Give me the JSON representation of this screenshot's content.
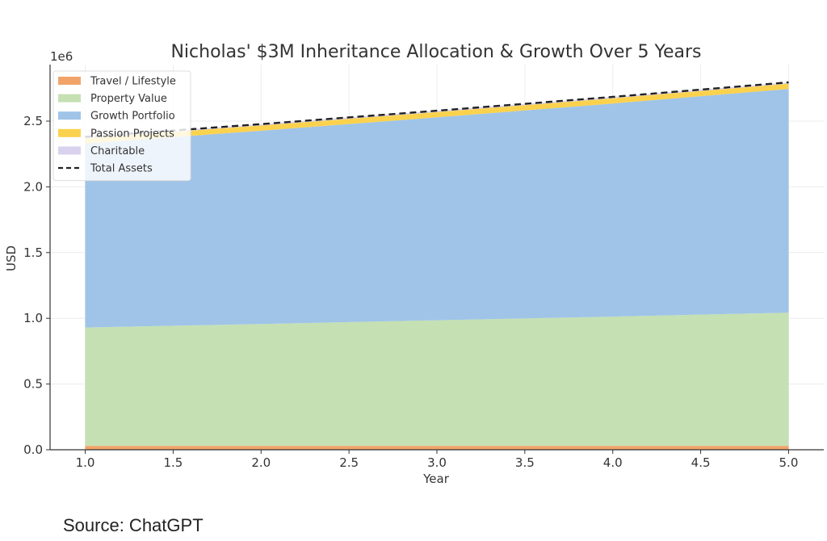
{
  "chart_data": {
    "type": "area",
    "title": "Nicholas' $3M Inheritance Allocation & Growth Over 5 Years",
    "xlabel": "Year",
    "ylabel": "USD",
    "y_offset_label": "1e6",
    "x": [
      1,
      2,
      3,
      4,
      5
    ],
    "xlim": [
      0.8,
      5.2
    ],
    "ylim": [
      0,
      2930000
    ],
    "x_ticks": [
      "1.0",
      "1.5",
      "2.0",
      "2.5",
      "3.0",
      "3.5",
      "4.0",
      "4.5",
      "5.0"
    ],
    "y_ticks": [
      "0.0",
      "0.5",
      "1.0",
      "1.5",
      "2.0",
      "2.5"
    ],
    "grid": true,
    "legend_position": "top-left",
    "stacked": true,
    "series": [
      {
        "name": "Travel / Lifestyle",
        "color": "#f0a46a",
        "values": [
          30000,
          30000,
          30000,
          30000,
          30000
        ]
      },
      {
        "name": "Property Value",
        "color": "#c5e0b3",
        "values": [
          900000,
          927000,
          955000,
          983000,
          1013000
        ]
      },
      {
        "name": "Growth Portfolio",
        "color": "#9fc4e8",
        "values": [
          1400000,
          1470000,
          1544000,
          1621000,
          1702000
        ]
      },
      {
        "name": "Passion Projects",
        "color": "#fbd24e",
        "values": [
          40000,
          40000,
          40000,
          40000,
          40000
        ]
      },
      {
        "name": "Charitable",
        "color": "#d9d2ee",
        "values": [
          10000,
          10000,
          10000,
          10000,
          10000
        ]
      }
    ],
    "total_line": {
      "name": "Total Assets",
      "color": "#222222",
      "values": [
        2380000,
        2477000,
        2579000,
        2684000,
        2795000
      ]
    }
  },
  "source_note": "Source: ChatGPT"
}
